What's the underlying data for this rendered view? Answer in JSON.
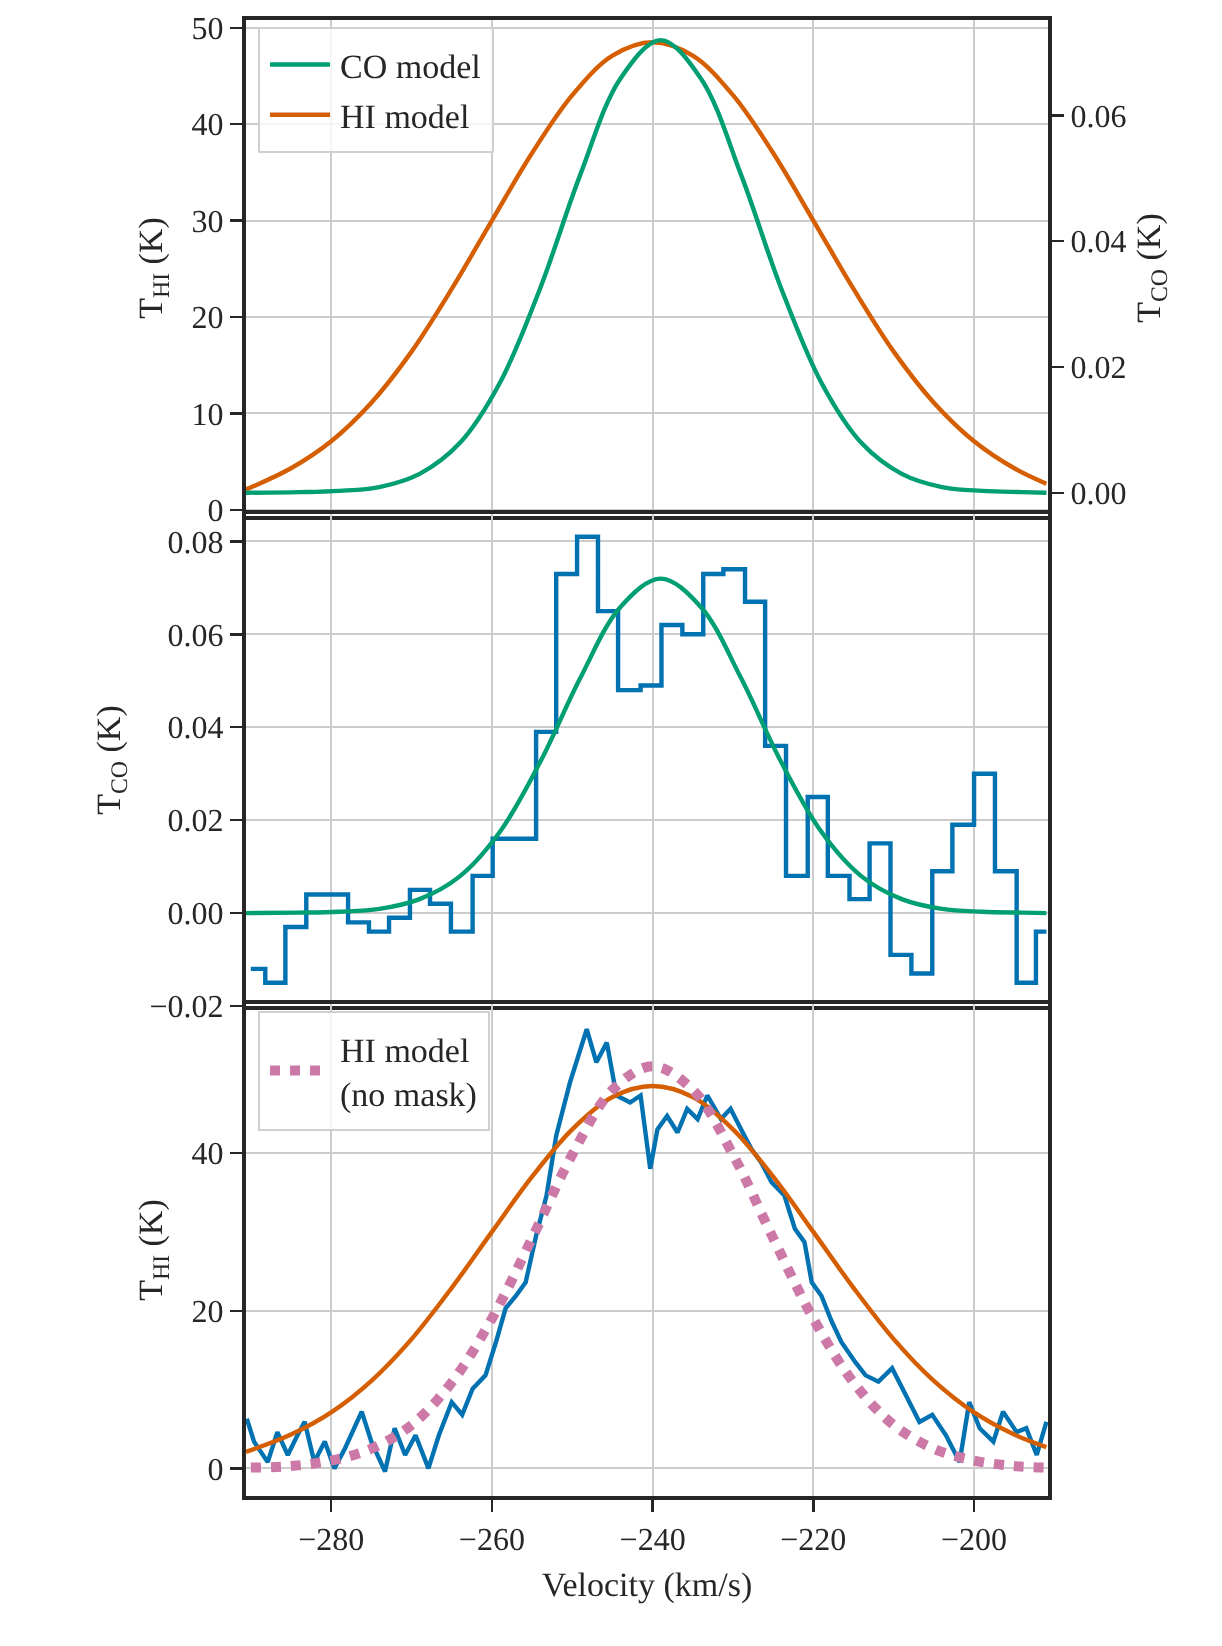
{
  "chart_data": [
    {
      "type": "line",
      "ylabel": "T$_{HI}$ (K)",
      "y2label": "T$_{CO}$ (K)",
      "xlim": [
        -290.6,
        -190.8
      ],
      "xticks": [
        -280,
        -260,
        -240,
        -220,
        -200
      ],
      "ylim": [
        -0.65,
        50.8
      ],
      "yticks": [
        0,
        10,
        20,
        30,
        40,
        50
      ],
      "y2lim": [
        -0.0037,
        0.0752
      ],
      "y2ticks": [
        {
          "value": 0,
          "label": "0.00"
        },
        0.02,
        0.04,
        0.06
      ],
      "grid": true,
      "legend": "top left",
      "tick_labels": "y",
      "series": [
        {
          "name": "CO model",
          "color": "#009e73",
          "axis": "y2",
          "x": [
            -290.6,
            -284,
            -279,
            -274,
            -269,
            -264,
            -259,
            -254,
            -249,
            -244,
            -239,
            -234,
            -229,
            -224,
            -219,
            -214,
            -209,
            -204,
            -199,
            -194,
            -191
          ],
          "values": [
            0,
            0.0001,
            0.0003,
            0.0009,
            0.003,
            0.0079,
            0.0175,
            0.0325,
            0.0506,
            0.0659,
            0.072,
            0.0659,
            0.0506,
            0.0325,
            0.0175,
            0.0079,
            0.003,
            0.0009,
            0.0003,
            0.0001,
            0
          ]
        },
        {
          "name": "HI model",
          "color": "#d55e00",
          "x": [
            -290.6,
            -285,
            -280,
            -275,
            -270,
            -265,
            -260,
            -255,
            -250,
            -245,
            -240,
            -235,
            -230,
            -225,
            -220,
            -215,
            -210,
            -205,
            -200,
            -195,
            -191
          ],
          "values": [
            2.1,
            4.3,
            7.1,
            11.1,
            16.4,
            22.9,
            30.0,
            37.0,
            43.0,
            47.1,
            48.5,
            47.1,
            43.0,
            37.0,
            30.0,
            22.9,
            16.4,
            11.1,
            7.1,
            4.3,
            2.7
          ]
        }
      ]
    },
    {
      "type": "step",
      "ylabel": "T$_{CO}$ (K)",
      "xlim": [
        -290.6,
        -190.8
      ],
      "xticks": [
        -280,
        -260,
        -240,
        -220,
        -200
      ],
      "ylim": [
        -0.02,
        0.0859
      ],
      "yticks": [
        -0.02,
        {
          "value": 0,
          "label": "0.00"
        },
        0.02,
        0.04,
        0.06,
        0.08
      ],
      "grid": true,
      "tick_labels": "y",
      "series": [
        {
          "color": "#0072b2",
          "x": [
            -290.0,
            -288.2,
            -285.7,
            -283.1,
            -280.6,
            -277.9,
            -275.3,
            -272.8,
            -270.2,
            -267.7,
            -265.1,
            -262.4,
            -259.9,
            -257.1,
            -254.5,
            -252.0,
            -249.4,
            -246.8,
            -244.3,
            -241.5,
            -238.9,
            -236.3,
            -233.7,
            -231.2,
            -228.5,
            -226.0,
            -223.4,
            -220.7,
            -218.2,
            -215.5,
            -213.0,
            -210.4,
            -207.8,
            -205.2,
            -202.7,
            -200.0,
            -197.4,
            -194.7,
            -192.3,
            -191.0
          ],
          "values": [
            -0.012,
            -0.015,
            -0.003,
            0.004,
            0.004,
            -0.002,
            -0.004,
            -0.001,
            0.005,
            0.002,
            -0.004,
            0.008,
            0.016,
            0.016,
            0.039,
            0.073,
            0.081,
            0.065,
            0.048,
            0.049,
            0.062,
            0.06,
            0.073,
            0.074,
            0.067,
            0.036,
            0.008,
            0.025,
            0.008,
            0.003,
            0.015,
            -0.009,
            -0.013,
            0.009,
            0.019,
            0.03,
            0.009,
            -0.015,
            -0.004,
            -0.004
          ]
        },
        {
          "type": "line",
          "color": "#009e73",
          "x": [
            -290.6,
            -284,
            -279,
            -274,
            -269,
            -264,
            -259,
            -254,
            -249,
            -244,
            -239,
            -234,
            -229,
            -224,
            -219,
            -214,
            -209,
            -204,
            -199,
            -194,
            -191
          ],
          "values": [
            0,
            0.0001,
            0.0003,
            0.0009,
            0.003,
            0.0079,
            0.0175,
            0.0325,
            0.0506,
            0.0659,
            0.072,
            0.0659,
            0.0506,
            0.0325,
            0.0175,
            0.0079,
            0.003,
            0.0009,
            0.0003,
            0.0001,
            0
          ]
        }
      ]
    },
    {
      "type": "line",
      "xlabel": "Velocity (km/s)",
      "ylabel": "T$_{HI}$ (K)",
      "xlim": [
        -290.6,
        -190.8
      ],
      "xticks": [
        -280,
        -260,
        -240,
        -220,
        -200
      ],
      "ylim": [
        -3.5,
        58.9
      ],
      "yticks": [
        0,
        20,
        40
      ],
      "grid": true,
      "legend": "top left",
      "series": [
        {
          "color": "#0072b2",
          "x": [
            -290.5,
            -289.6,
            -287.9,
            -286.7,
            -285.4,
            -284.2,
            -283.3,
            -282.1,
            -280.8,
            -279.6,
            -278.3,
            -276.2,
            -275.0,
            -273.3,
            -272.1,
            -270.8,
            -269.5,
            -267.9,
            -266.6,
            -265.0,
            -263.7,
            -262.4,
            -260.8,
            -259.5,
            -258.3,
            -257.0,
            -255.8,
            -254.5,
            -253.2,
            -252.0,
            -250.3,
            -248.2,
            -247.0,
            -245.7,
            -244.5,
            -242.8,
            -241.5,
            -240.3,
            -239.4,
            -238.2,
            -236.9,
            -235.7,
            -234.4,
            -233.2,
            -231.5,
            -230.3,
            -229.0,
            -227.7,
            -226.5,
            -225.2,
            -223.6,
            -222.3,
            -221.1,
            -220.2,
            -219.0,
            -217.7,
            -216.5,
            -214.8,
            -213.5,
            -211.9,
            -210.2,
            -208.5,
            -206.8,
            -205.2,
            -203.5,
            -201.8,
            -200.6,
            -199.3,
            -197.6,
            -196.4,
            -194.7,
            -193.5,
            -192.2,
            -191.0
          ],
          "values": [
            6.3,
            3.4,
            0.8,
            4.6,
            1.7,
            4.2,
            5.9,
            0.8,
            3.4,
            0,
            2.5,
            7.2,
            3.4,
            -0.4,
            5.1,
            1.7,
            4.2,
            0,
            4.2,
            8.4,
            6.8,
            10.1,
            11.8,
            16.0,
            20.3,
            21.9,
            23.6,
            29.5,
            34.6,
            42.2,
            48.9,
            55.7,
            51.5,
            54.0,
            47.3,
            46.4,
            47.3,
            38.0,
            43.0,
            44.7,
            42.6,
            45.6,
            44.3,
            47.3,
            44.3,
            45.6,
            43.0,
            40.5,
            38.8,
            36.3,
            34.6,
            30.4,
            28.7,
            23.6,
            21.9,
            18.6,
            16.0,
            13.5,
            11.8,
            11.0,
            12.7,
            9.3,
            5.9,
            6.8,
            4.2,
            0.8,
            8.4,
            5.1,
            3.4,
            7.2,
            4.6,
            5.1,
            1.7,
            5.9
          ]
        },
        {
          "color": "#d55e00",
          "x": [
            -290.6,
            -285,
            -280,
            -275,
            -270,
            -265,
            -260,
            -255,
            -250,
            -245,
            -240,
            -235,
            -230,
            -225,
            -220,
            -215,
            -210,
            -205,
            -200,
            -195,
            -191
          ],
          "values": [
            2.1,
            4.3,
            7.1,
            11.1,
            16.4,
            22.9,
            30.0,
            37.0,
            43.0,
            47.1,
            48.5,
            47.1,
            43.0,
            37.0,
            30.0,
            22.9,
            16.4,
            11.1,
            7.1,
            4.3,
            2.7
          ]
        },
        {
          "name": "HI model\n(no mask)",
          "color": "#cc79a7",
          "line_style": "dotted",
          "x": [
            -290,
            -285,
            -280,
            -275,
            -270,
            -265,
            -260,
            -255,
            -250,
            -245,
            -240,
            -235,
            -230,
            -225,
            -220,
            -215,
            -210,
            -205,
            -200,
            -195,
            -191
          ],
          "values": [
            0.1,
            0.3,
            1.0,
            2.5,
            5.5,
            10.9,
            19.0,
            29.2,
            39.8,
            48.0,
            51,
            48.0,
            39.8,
            29.2,
            19.0,
            10.9,
            5.5,
            2.5,
            1.0,
            0.3,
            0.1
          ]
        }
      ]
    }
  ]
}
